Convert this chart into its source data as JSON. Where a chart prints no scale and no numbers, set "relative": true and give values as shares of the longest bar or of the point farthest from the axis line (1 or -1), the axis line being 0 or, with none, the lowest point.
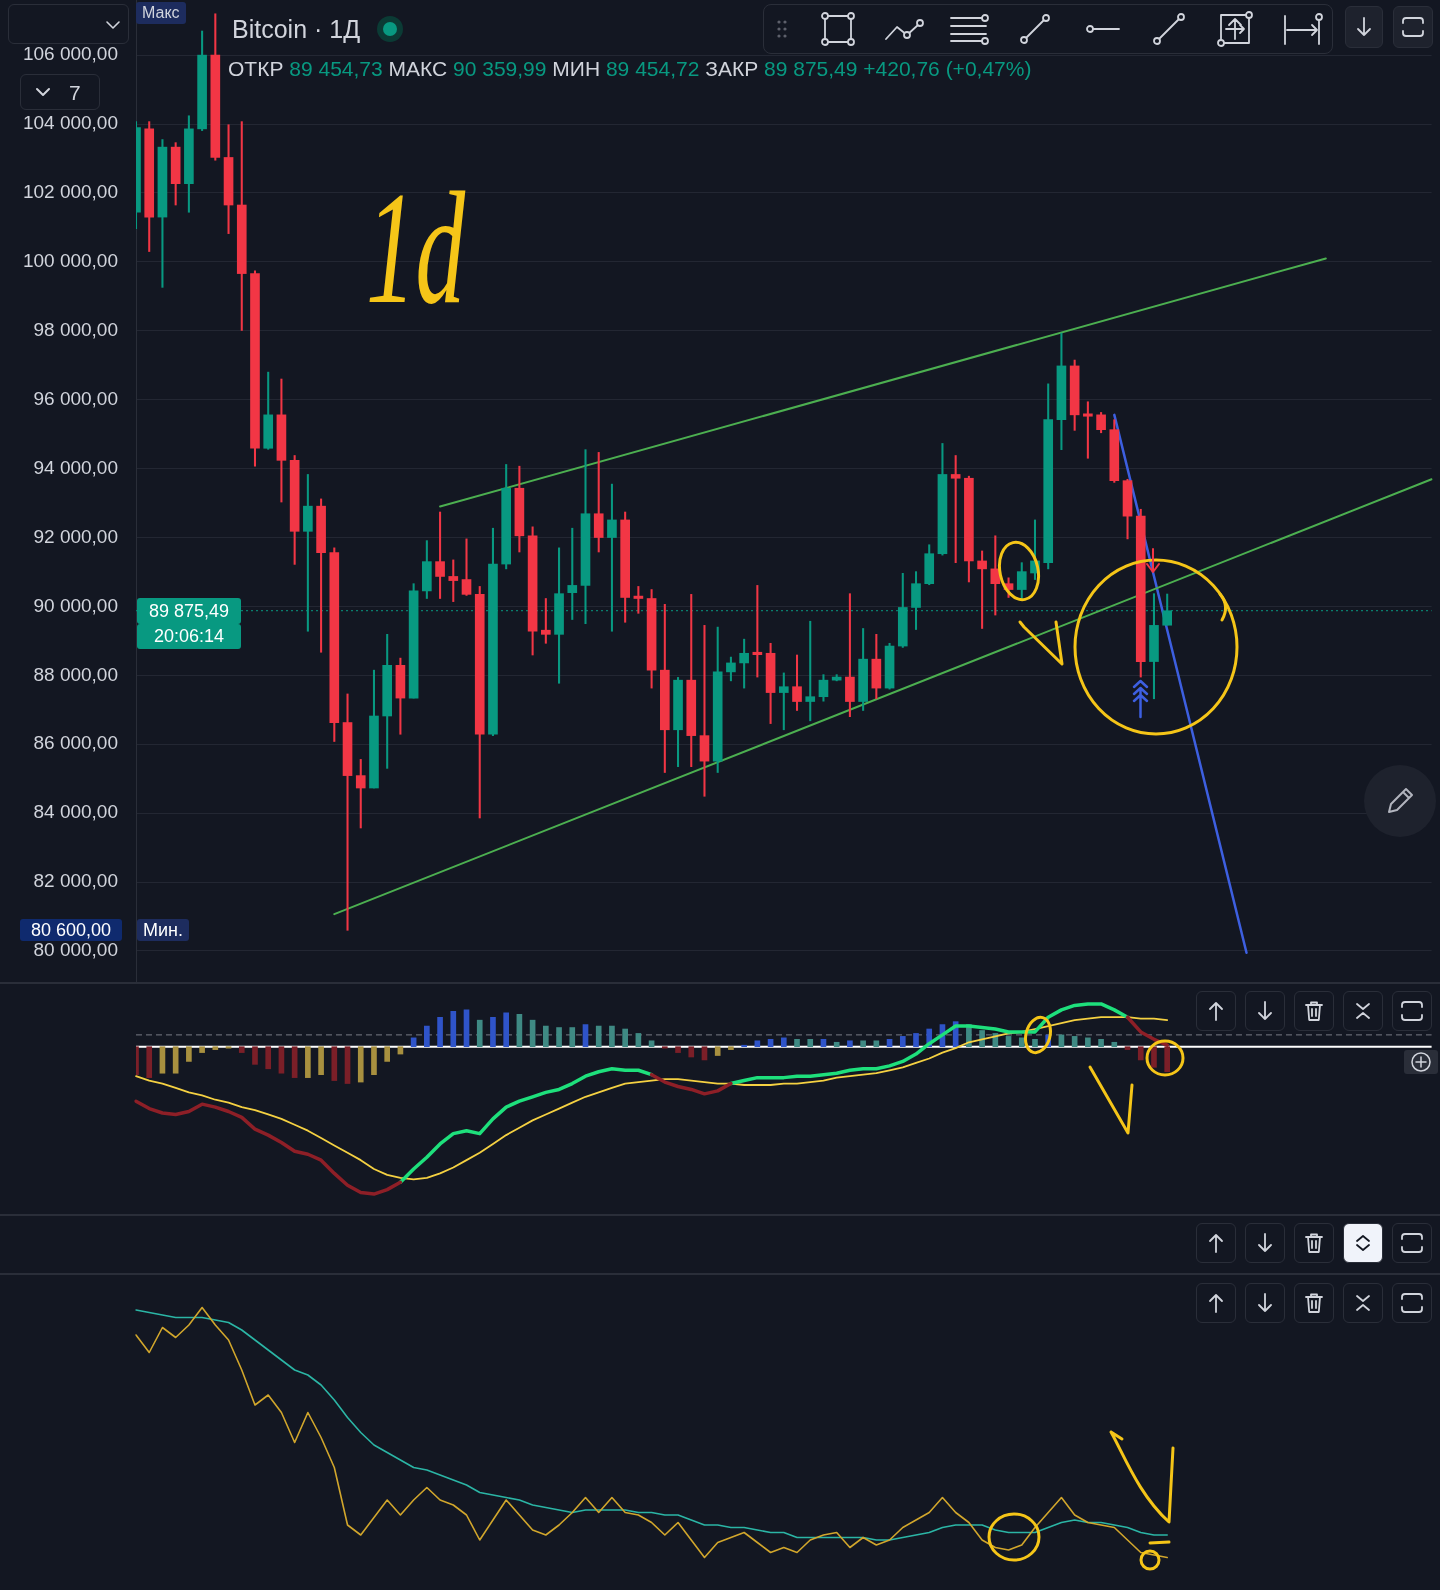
{
  "chart_data": [
    {
      "type": "candlestick",
      "title": "Bitcoin · 1Д",
      "subtitle": "ОТКР 89 454,73 МАКС 90 359,99 МИН 89 454,72 ЗАКР 89 875,49 +420,76 (+0,47%)",
      "categories": [
        null,
        null,
        null,
        null,
        null,
        null,
        null,
        null,
        null,
        null,
        null,
        null,
        null,
        null,
        null,
        null,
        null,
        null,
        null,
        null,
        null,
        null,
        null,
        null,
        null,
        null,
        null,
        null,
        null,
        null,
        null,
        null,
        null,
        null,
        null,
        null,
        null,
        null,
        null,
        null,
        null,
        null,
        null,
        null,
        null,
        null,
        null,
        null,
        null,
        null,
        null,
        null,
        null,
        null,
        null,
        null,
        null,
        null,
        null,
        null,
        null,
        null,
        null,
        null,
        null,
        null,
        null,
        null,
        null,
        null,
        null,
        null,
        null,
        null,
        null,
        null,
        null,
        null,
        null,
        null,
        null,
        null,
        null,
        null,
        null,
        null,
        null,
        null,
        null,
        null,
        null,
        null,
        null,
        null,
        null,
        null,
        null,
        null,
        null
      ],
      "ohlc": [
        [
          101440,
          104070,
          100960,
          103900
        ],
        [
          103860,
          104070,
          100300,
          101300
        ],
        [
          101300,
          103550,
          99260,
          103330
        ],
        [
          103330,
          103460,
          101650,
          102270
        ],
        [
          102270,
          104240,
          101440,
          103860
        ],
        [
          103860,
          106700,
          103810,
          106000
        ],
        [
          106000,
          107200,
          102950,
          103030
        ],
        [
          103030,
          103980,
          100820,
          101650
        ],
        [
          101650,
          104070,
          98010,
          99660
        ],
        [
          99660,
          99740,
          94070,
          94590
        ],
        [
          94590,
          96800,
          94560,
          95560
        ],
        [
          95560,
          96600,
          93030,
          94240
        ],
        [
          94240,
          94380,
          91220,
          92180
        ],
        [
          92180,
          93830,
          89280,
          92910
        ],
        [
          92910,
          93120,
          88670,
          91560
        ],
        [
          91560,
          91700,
          86080,
          86630
        ],
        [
          86630,
          87460,
          80600,
          85090
        ],
        [
          85090,
          85560,
          83570,
          84730
        ],
        [
          84730,
          88150,
          84730,
          86820
        ],
        [
          86820,
          89190,
          85300,
          88290
        ],
        [
          88290,
          88500,
          86290,
          87340
        ],
        [
          87340,
          90660,
          87340,
          90450
        ],
        [
          90450,
          91910,
          90230,
          91300
        ],
        [
          91300,
          92740,
          90230,
          90870
        ],
        [
          90870,
          91350,
          90140,
          90750
        ],
        [
          90780,
          91960,
          90320,
          90350
        ],
        [
          90350,
          90580,
          83860,
          86290
        ],
        [
          86290,
          92270,
          86250,
          91230
        ],
        [
          91230,
          94120,
          91090,
          93430
        ],
        [
          93430,
          94070,
          91580,
          92050
        ],
        [
          92050,
          92310,
          88590,
          89280
        ],
        [
          89310,
          90230,
          88930,
          89190
        ],
        [
          89190,
          91700,
          87770,
          90370
        ],
        [
          90400,
          92270,
          89620,
          90610
        ],
        [
          90610,
          94550,
          89500,
          92690
        ],
        [
          92690,
          94470,
          91580,
          92000
        ],
        [
          92000,
          93550,
          89280,
          92510
        ],
        [
          92510,
          92740,
          89540,
          90260
        ],
        [
          90300,
          90580,
          89800,
          90230
        ],
        [
          90230,
          90490,
          87630,
          88150
        ],
        [
          88150,
          90060,
          85180,
          86420
        ],
        [
          86420,
          87940,
          85350,
          87860
        ],
        [
          87860,
          90350,
          85350,
          86250
        ],
        [
          86250,
          89450,
          84490,
          85510
        ],
        [
          85510,
          89400,
          85180,
          88100
        ],
        [
          88100,
          88530,
          87840,
          88360
        ],
        [
          88360,
          89050,
          87630,
          88640
        ],
        [
          88670,
          90610,
          87950,
          88600
        ],
        [
          88640,
          88930,
          86600,
          87500
        ],
        [
          87500,
          88070,
          86420,
          87670
        ],
        [
          87670,
          88590,
          86980,
          87240
        ],
        [
          87240,
          89570,
          86680,
          87380
        ],
        [
          87380,
          88020,
          87250,
          87860
        ],
        [
          87860,
          88020,
          87840,
          87950
        ],
        [
          87950,
          90370,
          86800,
          87240
        ],
        [
          87240,
          89360,
          86980,
          88470
        ],
        [
          88470,
          89190,
          87320,
          87630
        ],
        [
          87630,
          88930,
          87600,
          88850
        ],
        [
          88850,
          90960,
          88810,
          89970
        ],
        [
          89970,
          91010,
          89330,
          90660
        ],
        [
          90660,
          91790,
          90630,
          91530
        ],
        [
          91530,
          94730,
          91490,
          93830
        ],
        [
          93830,
          94380,
          91270,
          93720
        ],
        [
          93720,
          93780,
          90710,
          91320
        ],
        [
          91320,
          91610,
          89360,
          91090
        ],
        [
          91090,
          92050,
          89750,
          90660
        ],
        [
          90660,
          90830,
          90260,
          90490
        ],
        [
          90490,
          91270,
          90230,
          91010
        ],
        [
          90970,
          92510,
          90780,
          91320
        ],
        [
          91270,
          96460,
          91090,
          95420
        ],
        [
          95420,
          97930,
          94550,
          96980
        ],
        [
          96980,
          97150,
          95110,
          95560
        ],
        [
          95590,
          95940,
          94300,
          95520
        ],
        [
          95560,
          95630,
          95040,
          95130
        ],
        [
          95130,
          95420,
          93600,
          93650
        ],
        [
          93650,
          93690,
          91960,
          92620
        ],
        [
          92620,
          92820,
          87950,
          88400
        ],
        [
          88400,
          90370,
          87320,
          89450
        ],
        [
          89454.73,
          90359.99,
          89454.72,
          89875.49
        ],
        null,
        null,
        null,
        null,
        null,
        null,
        null,
        null,
        null,
        null,
        null,
        null,
        null,
        null,
        null,
        null,
        null,
        null,
        null,
        null
      ],
      "colors": [
        "#089981",
        "#f23645",
        "#089981",
        "#f23645",
        "#089981",
        "#089981",
        "#f23645",
        "#f23645",
        "#f23645",
        "#f23645",
        "#089981",
        "#f23645",
        "#f23645",
        "#089981",
        "#f23645",
        "#f23645",
        "#f23645",
        "#f23645",
        "#089981",
        "#089981",
        "#f23645",
        "#089981",
        "#089981",
        "#f23645",
        "#f23645",
        "#f23645",
        "#f23645",
        "#089981",
        "#089981",
        "#f23645",
        "#f23645",
        "#f23645",
        "#089981",
        "#089981",
        "#089981",
        "#f23645",
        "#089981",
        "#f23645",
        "#f23645",
        "#f23645",
        "#f23645",
        "#089981",
        "#f23645",
        "#f23645",
        "#089981",
        "#089981",
        "#089981",
        "#f23645",
        "#f23645",
        "#089981",
        "#f23645",
        "#089981",
        "#089981",
        "#089981",
        "#f23645",
        "#089981",
        "#f23645",
        "#089981",
        "#089981",
        "#089981",
        "#089981",
        "#089981",
        "#f23645",
        "#f23645",
        "#f23645",
        "#f23645",
        "#f23645",
        "#089981",
        "#089981",
        "#089981",
        "#089981",
        "#f23645",
        "#f23645",
        "#f23645",
        "#f23645",
        "#f23645",
        "#f23645",
        "#089981",
        "#089981",
        null,
        null,
        null,
        null,
        null,
        null,
        null,
        null,
        null,
        null,
        null,
        null,
        null,
        null,
        null,
        null,
        null,
        null,
        null,
        null
      ],
      "series": [
        {
          "type": "line",
          "color": "#4caf50",
          "values": [
            null,
            null,
            null,
            null,
            null,
            null,
            null,
            null,
            null,
            null,
            null,
            null,
            null,
            null,
            null,
            null,
            null,
            null,
            null,
            null,
            null,
            null,
            null,
            92900,
            null,
            null,
            null,
            null,
            null,
            null,
            null,
            null,
            null,
            null,
            null,
            null,
            null,
            null,
            null,
            null,
            null,
            null,
            null,
            null,
            null,
            null,
            null,
            null,
            null,
            null,
            null,
            null,
            null,
            null,
            null,
            null,
            null,
            null,
            null,
            null,
            null,
            null,
            null,
            null,
            null,
            null,
            null,
            null,
            null,
            null,
            null,
            null,
            null,
            null,
            null,
            null,
            null,
            null,
            null,
            null,
            null,
            null,
            null,
            null,
            null,
            null,
            null,
            null,
            null,
            null,
            100100,
            null,
            null,
            null,
            null,
            null,
            null,
            null,
            null
          ]
        },
        {
          "type": "line",
          "color": "#4caf50",
          "values": [
            null,
            null,
            null,
            null,
            null,
            null,
            null,
            null,
            null,
            null,
            null,
            null,
            null,
            null,
            null,
            81070,
            null,
            null,
            null,
            null,
            null,
            null,
            null,
            null,
            null,
            null,
            null,
            null,
            null,
            null,
            null,
            null,
            null,
            null,
            null,
            null,
            null,
            null,
            null,
            null,
            null,
            null,
            null,
            null,
            null,
            null,
            null,
            null,
            null,
            null,
            null,
            null,
            null,
            null,
            null,
            null,
            null,
            null,
            null,
            null,
            null,
            null,
            null,
            null,
            null,
            null,
            null,
            null,
            null,
            null,
            null,
            null,
            null,
            null,
            null,
            null,
            null,
            null,
            null,
            null,
            null,
            null,
            null,
            null,
            null,
            null,
            null,
            null,
            null,
            null,
            null,
            null,
            null,
            null,
            null,
            null,
            null,
            null,
            93690
          ]
        },
        {
          "type": "line",
          "color": "#3d5fe0",
          "values": [
            null,
            null,
            null,
            null,
            null,
            null,
            null,
            null,
            null,
            null,
            null,
            null,
            null,
            null,
            null,
            null,
            null,
            null,
            null,
            null,
            null,
            null,
            null,
            null,
            null,
            null,
            null,
            null,
            null,
            null,
            null,
            null,
            null,
            null,
            null,
            null,
            null,
            null,
            null,
            null,
            null,
            null,
            null,
            null,
            null,
            null,
            null,
            null,
            null,
            null,
            null,
            null,
            null,
            null,
            null,
            null,
            null,
            null,
            null,
            null,
            null,
            null,
            null,
            null,
            null,
            null,
            null,
            null,
            null,
            null,
            null,
            null,
            null,
            null,
            95560,
            null,
            null,
            null,
            null,
            null,
            null,
            null,
            null,
            null,
            79950,
            null,
            null,
            null,
            null,
            null,
            null,
            null,
            null,
            null,
            null,
            null,
            null,
            null,
            null
          ]
        }
      ],
      "ylim": [
        79100,
        107600
      ],
      "yticks": [
        {
          "value": 80000,
          "label": "80 000,00"
        },
        {
          "value": 82000,
          "label": "82 000,00"
        },
        {
          "value": 84000,
          "label": "84 000,00"
        },
        {
          "value": 86000,
          "label": "86 000,00"
        },
        {
          "value": 88000,
          "label": "88 000,00"
        },
        {
          "value": 90000,
          "label": "90 000,00"
        },
        {
          "value": 92000,
          "label": "92 000,00"
        },
        {
          "value": 94000,
          "label": "94 000,00"
        },
        {
          "value": 96000,
          "label": "96 000,00"
        },
        {
          "value": 98000,
          "label": "98 000,00"
        },
        {
          "value": 100000,
          "label": "100 000,00"
        },
        {
          "value": 102000,
          "label": "102 000,00"
        },
        {
          "value": 104000,
          "label": "104 000,00"
        },
        {
          "value": 106000,
          "label": "106 000,00"
        }
      ],
      "grid": "y",
      "tick_labels": "y",
      "ref_lines": [
        {
          "axis": "y",
          "value": 89875.49,
          "label": "89 875,49",
          "color": "#089981",
          "line_style": "dotted"
        }
      ],
      "annotations": [
        "7",
        "Макс",
        "20:06:14",
        "80 600,00",
        "Мин.",
        "1d"
      ]
    },
    {
      "type": "line",
      "relative": true,
      "categories": [
        null,
        null,
        null,
        null,
        null,
        null,
        null,
        null,
        null,
        null,
        null,
        null,
        null,
        null,
        null,
        null,
        null,
        null,
        null,
        null,
        null,
        null,
        null,
        null,
        null,
        null,
        null,
        null,
        null,
        null,
        null,
        null,
        null,
        null,
        null,
        null,
        null,
        null,
        null,
        null,
        null,
        null,
        null,
        null,
        null,
        null,
        null,
        null,
        null,
        null,
        null,
        null,
        null,
        null,
        null,
        null,
        null,
        null,
        null,
        null,
        null,
        null,
        null,
        null,
        null,
        null,
        null,
        null,
        null,
        null,
        null,
        null,
        null,
        null,
        null,
        null,
        null,
        null,
        null,
        null,
        null,
        null,
        null,
        null,
        null,
        null,
        null,
        null,
        null,
        null,
        null,
        null,
        null,
        null,
        null,
        null,
        null,
        null,
        null
      ],
      "series": [
        {
          "type": "bar",
          "colors": [
            "#7b1f28",
            "#7b1f28",
            "#a8903f",
            "#a8903f",
            "#a8903f",
            "#a8903f",
            "#a8903f",
            "#a8903f",
            "#7b1f28",
            "#7b1f28",
            "#7b1f28",
            "#7b1f28",
            "#7b1f28",
            "#a8903f",
            "#a8903f",
            "#7b1f28",
            "#7b1f28",
            "#a8903f",
            "#a8903f",
            "#a8903f",
            "#a8903f",
            "#2f54c9",
            "#2f54c9",
            "#2f54c9",
            "#2f54c9",
            "#2f54c9",
            "#3f8a84",
            "#2f54c9",
            "#2f54c9",
            "#3f8a84",
            "#3f8a84",
            "#3f8a84",
            "#3f8a84",
            "#3f8a84",
            "#2f54c9",
            "#3f8a84",
            "#3f8a84",
            "#3f8a84",
            "#3f8a84",
            "#3f8a84",
            "#7b1f28",
            "#7b1f28",
            "#7b1f28",
            "#7b1f28",
            "#a8903f",
            "#a8903f",
            "#2f54c9",
            "#2f54c9",
            "#2f54c9",
            "#2f54c9",
            "#3f8a84",
            "#3f8a84",
            "#2f54c9",
            "#3f8a84",
            "#2f54c9",
            "#3f8a84",
            "#3f8a84",
            "#2f54c9",
            "#2f54c9",
            "#2f54c9",
            "#2f54c9",
            "#2f54c9",
            "#2f54c9",
            "#3f8a84",
            "#3f8a84",
            "#3f8a84",
            "#3f8a84",
            "#3f8a84",
            "#3f8a84",
            "#2f54c9",
            "#3f8a84",
            "#3f8a84",
            "#3f8a84",
            "#3f8a84",
            "#3f8a84",
            "#7b1f28",
            "#7b1f28",
            "#7b1f28",
            "#7b1f28",
            null,
            null,
            null,
            null,
            null,
            null,
            null,
            null,
            null,
            null,
            null,
            null,
            null,
            null,
            null,
            null,
            null,
            null,
            null,
            null
          ],
          "values": [
            -0.19,
            -0.21,
            -0.18,
            -0.18,
            -0.1,
            -0.04,
            -0.02,
            -0.01,
            -0.04,
            -0.12,
            -0.15,
            -0.18,
            -0.21,
            -0.21,
            -0.19,
            -0.23,
            -0.25,
            -0.24,
            -0.19,
            -0.1,
            -0.05,
            0.06,
            0.14,
            0.2,
            0.24,
            0.25,
            0.18,
            0.2,
            0.23,
            0.22,
            0.18,
            0.14,
            0.13,
            0.13,
            0.15,
            0.14,
            0.14,
            0.12,
            0.09,
            0.04,
            -0.01,
            -0.04,
            -0.07,
            -0.09,
            -0.06,
            -0.02,
            0.01,
            0.04,
            0.05,
            0.06,
            0.05,
            0.05,
            0.05,
            0.03,
            0.04,
            0.04,
            0.04,
            0.05,
            0.07,
            0.09,
            0.12,
            0.15,
            0.17,
            0.15,
            0.11,
            0.09,
            0.07,
            0.06,
            0.05,
            0.08,
            0.08,
            0.07,
            0.06,
            0.05,
            0.03,
            -0.02,
            -0.09,
            -0.14,
            -0.17,
            null,
            null,
            null,
            null,
            null,
            null,
            null,
            null,
            null,
            null,
            null,
            null,
            null,
            null,
            null,
            null,
            null,
            null,
            null,
            null
          ]
        },
        {
          "color": "#8e1f27",
          "values": [
            -0.37,
            -0.42,
            -0.45,
            -0.46,
            -0.44,
            -0.39,
            -0.41,
            -0.44,
            -0.48,
            -0.56,
            -0.6,
            -0.65,
            -0.71,
            -0.73,
            -0.77,
            -0.86,
            -0.94,
            -0.99,
            -1,
            -0.97,
            -0.92,
            null,
            null,
            null,
            null,
            null,
            null,
            null,
            null,
            null,
            null,
            null,
            null,
            null,
            null,
            null,
            null,
            null,
            null,
            -0.19,
            -0.24,
            -0.27,
            -0.29,
            -0.32,
            -0.3,
            -0.25,
            null,
            null,
            null,
            null,
            null,
            null,
            null,
            null,
            null,
            null,
            null,
            null,
            null,
            null,
            null,
            null,
            null,
            null,
            null,
            null,
            null,
            null,
            null,
            null,
            null,
            null,
            null,
            null,
            null,
            0.2,
            0.1,
            0.05,
            0.01,
            null,
            null,
            null,
            null,
            null,
            null,
            null,
            null,
            null,
            null,
            null,
            null,
            null,
            null,
            null,
            null,
            null,
            null,
            null,
            null
          ]
        },
        {
          "color": "#1ee07c",
          "values": [
            null,
            null,
            null,
            null,
            null,
            null,
            null,
            null,
            null,
            null,
            null,
            null,
            null,
            null,
            null,
            null,
            null,
            null,
            null,
            null,
            -0.92,
            -0.83,
            -0.75,
            -0.66,
            -0.59,
            -0.57,
            -0.59,
            -0.49,
            -0.41,
            -0.37,
            -0.34,
            -0.31,
            -0.29,
            -0.25,
            -0.2,
            -0.17,
            -0.15,
            -0.16,
            -0.16,
            -0.19,
            null,
            null,
            null,
            null,
            null,
            -0.25,
            -0.23,
            -0.21,
            -0.21,
            -0.21,
            -0.2,
            -0.2,
            -0.19,
            -0.18,
            -0.16,
            -0.15,
            -0.15,
            -0.13,
            -0.1,
            -0.05,
            0.02,
            0.08,
            0.14,
            0.14,
            0.13,
            0.12,
            0.1,
            0.1,
            0.1,
            0.2,
            0.25,
            0.28,
            0.29,
            0.29,
            0.25,
            0.2,
            null,
            null,
            null,
            null,
            null,
            null,
            null,
            null,
            null,
            null,
            null,
            null,
            null,
            null,
            null,
            null,
            null,
            null,
            null,
            null,
            null,
            null,
            null
          ]
        },
        {
          "color": "#f5d142",
          "values": [
            -0.2,
            -0.23,
            -0.25,
            -0.28,
            -0.31,
            -0.33,
            -0.36,
            -0.38,
            -0.41,
            -0.43,
            -0.46,
            -0.49,
            -0.53,
            -0.57,
            -0.62,
            -0.67,
            -0.72,
            -0.77,
            -0.83,
            -0.87,
            -0.89,
            -0.9,
            -0.89,
            -0.86,
            -0.82,
            -0.77,
            -0.72,
            -0.66,
            -0.6,
            -0.55,
            -0.5,
            -0.46,
            -0.42,
            -0.38,
            -0.34,
            -0.31,
            -0.28,
            -0.25,
            -0.24,
            -0.23,
            -0.22,
            -0.22,
            -0.23,
            -0.24,
            -0.25,
            -0.25,
            -0.26,
            -0.26,
            -0.26,
            -0.25,
            -0.25,
            -0.24,
            -0.23,
            -0.21,
            -0.2,
            -0.19,
            -0.18,
            -0.16,
            -0.14,
            -0.11,
            -0.08,
            -0.04,
            -0.01,
            0.03,
            0.05,
            0.07,
            0.09,
            0.1,
            0.12,
            0.14,
            0.16,
            0.18,
            0.19,
            0.2,
            0.2,
            0.2,
            0.19,
            0.19,
            0.18,
            null,
            null,
            null,
            null,
            null,
            null,
            null,
            null,
            null,
            null,
            null,
            null,
            null,
            null,
            null,
            null,
            null,
            null,
            null,
            null
          ]
        }
      ],
      "tick_labels": false,
      "ref_lines": [
        {
          "axis": "y",
          "value": 0.08,
          "color": "#787b86",
          "line_style": "dashed"
        }
      ]
    },
    {
      "type": "line",
      "relative": true,
      "categories": [
        null,
        null,
        null,
        null,
        null,
        null,
        null,
        null,
        null,
        null,
        null,
        null,
        null,
        null,
        null,
        null,
        null,
        null,
        null,
        null,
        null,
        null,
        null,
        null,
        null,
        null,
        null,
        null,
        null,
        null,
        null,
        null,
        null,
        null,
        null,
        null,
        null,
        null,
        null,
        null,
        null,
        null,
        null,
        null,
        null,
        null,
        null,
        null,
        null,
        null,
        null,
        null,
        null,
        null,
        null,
        null,
        null,
        null,
        null,
        null,
        null,
        null,
        null,
        null,
        null,
        null,
        null,
        null,
        null,
        null,
        null,
        null,
        null,
        null,
        null,
        null,
        null,
        null,
        null,
        null,
        null,
        null,
        null,
        null,
        null,
        null,
        null,
        null,
        null,
        null,
        null,
        null,
        null,
        null,
        null,
        null,
        null,
        null,
        null
      ],
      "series": [
        {
          "color": "#d1a62c",
          "values": [
            0.89,
            0.82,
            0.92,
            0.88,
            0.93,
            1,
            0.93,
            0.87,
            0.75,
            0.61,
            0.65,
            0.58,
            0.46,
            0.58,
            0.48,
            0.36,
            0.13,
            0.09,
            0.16,
            0.23,
            0.17,
            0.23,
            0.28,
            0.23,
            0.21,
            0.17,
            0.07,
            0.15,
            0.23,
            0.17,
            0.11,
            0.09,
            0.13,
            0.18,
            0.24,
            0.18,
            0.24,
            0.18,
            0.17,
            0.14,
            0.09,
            0.14,
            0.07,
            0,
            0.06,
            0.08,
            0.1,
            0.06,
            0.02,
            0.04,
            0.02,
            0.07,
            0.09,
            0.1,
            0.04,
            0.08,
            0.05,
            0.07,
            0.12,
            0.15,
            0.18,
            0.24,
            0.18,
            0.14,
            0.07,
            0.04,
            0.03,
            0.05,
            0.12,
            0.18,
            0.24,
            0.17,
            0.14,
            0.13,
            0.12,
            0.07,
            0.02,
            0.01,
            0,
            null,
            null,
            null,
            null,
            null,
            null,
            null,
            null,
            null,
            null,
            null,
            null,
            null,
            null,
            null,
            null,
            null,
            null,
            null,
            null
          ]
        },
        {
          "color": "#2bb5a5",
          "values": [
            0.99,
            0.98,
            0.97,
            0.96,
            0.96,
            0.96,
            0.95,
            0.94,
            0.91,
            0.87,
            0.83,
            0.79,
            0.75,
            0.73,
            0.69,
            0.63,
            0.56,
            0.5,
            0.45,
            0.42,
            0.39,
            0.36,
            0.35,
            0.33,
            0.31,
            0.29,
            0.26,
            0.25,
            0.24,
            0.23,
            0.21,
            0.2,
            0.19,
            0.18,
            0.19,
            0.19,
            0.19,
            0.19,
            0.18,
            0.18,
            0.17,
            0.17,
            0.15,
            0.13,
            0.13,
            0.12,
            0.12,
            0.11,
            0.1,
            0.1,
            0.08,
            0.08,
            0.08,
            0.08,
            0.08,
            0.08,
            0.07,
            0.07,
            0.08,
            0.09,
            0.1,
            0.12,
            0.13,
            0.13,
            0.13,
            0.11,
            0.1,
            0.1,
            0.1,
            0.12,
            0.14,
            0.15,
            0.14,
            0.14,
            0.13,
            0.12,
            0.1,
            0.09,
            0.09,
            null,
            null,
            null,
            null,
            null,
            null,
            null,
            null,
            null,
            null,
            null,
            null,
            null,
            null,
            null,
            null,
            null,
            null,
            null,
            null
          ]
        }
      ],
      "tick_labels": false
    }
  ]
}
